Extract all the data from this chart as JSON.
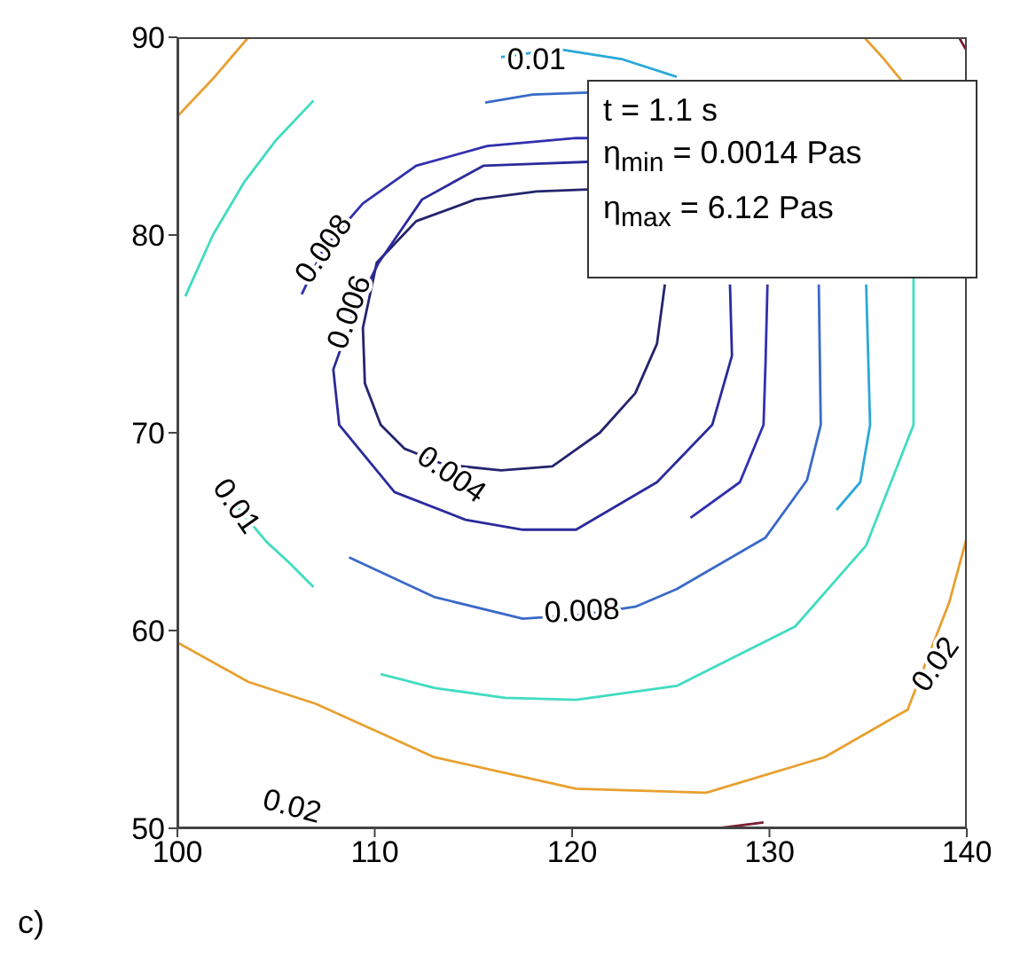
{
  "chart_data": {
    "type": "line",
    "xlim": [
      100,
      140
    ],
    "xticks": [
      100,
      110,
      120,
      130,
      140
    ],
    "ylim": [
      50,
      90
    ],
    "yticks": [
      50,
      60,
      70,
      80,
      90
    ],
    "series": [
      {
        "color": "#24246e",
        "x": [
          120.8,
          118.2,
          115.1,
          112.1,
          110.1,
          109.4,
          109.5,
          110.3,
          111.5,
          113.5,
          116.4,
          119.0,
          121.4,
          123.2,
          124.3,
          124.7
        ],
        "values": [
          82.3,
          82.2,
          81.8,
          80.7,
          78.6,
          75.3,
          72.5,
          70.4,
          69.2,
          68.4,
          68.1,
          68.3,
          70.0,
          72.0,
          74.5,
          77.5
        ]
      },
      {
        "color": "#2a2a9c",
        "x": [
          120.8,
          118.2,
          115.5,
          112.4,
          110.2,
          108.9,
          107.9,
          108.2,
          111.0,
          114.6,
          117.5,
          120.2,
          124.3,
          127.1,
          128.1,
          128.0
        ],
        "values": [
          83.7,
          83.6,
          83.5,
          81.8,
          78.6,
          76.0,
          73.2,
          70.4,
          67.0,
          65.6,
          65.1,
          65.1,
          67.5,
          70.4,
          73.9,
          77.5
        ]
      },
      {
        "color": "#3030b0",
        "x": [
          106.3,
          107.4,
          109.4,
          112.1,
          115.7,
          120.2,
          120.8
        ],
        "values": [
          77.0,
          79.3,
          81.6,
          83.5,
          84.5,
          84.9,
          84.9
        ]
      },
      {
        "color": "#3030b0",
        "x": [
          129.9,
          129.8,
          129.7,
          128.5,
          126.0
        ],
        "values": [
          77.5,
          73.5,
          70.4,
          67.5,
          65.7
        ]
      },
      {
        "color": "#3a6ac8",
        "x": [
          115.6,
          118.0,
          120.8
        ],
        "values": [
          86.7,
          87.1,
          87.2
        ]
      },
      {
        "color": "#3a6ac8",
        "x": [
          132.5,
          132.6,
          131.9,
          129.8,
          125.3,
          123.2,
          120.5,
          117.5,
          113.0,
          108.7
        ],
        "values": [
          77.5,
          70.4,
          67.6,
          64.7,
          62.1,
          61.2,
          60.8,
          60.6,
          61.7,
          63.7
        ]
      },
      {
        "color": "#2aa8d8",
        "x": [
          116.4,
          119.3,
          122.5,
          125.3
        ],
        "values": [
          89.0,
          89.4,
          88.9,
          88.0
        ]
      },
      {
        "color": "#2aa8d8",
        "x": [
          134.9,
          135.1,
          134.6,
          133.4
        ],
        "values": [
          77.5,
          70.4,
          67.5,
          66.1
        ]
      },
      {
        "color": "#40dcc0",
        "x": [
          106.9,
          105.0,
          103.4,
          101.8,
          100.4
        ],
        "values": [
          86.8,
          84.8,
          82.7,
          80.0,
          76.9
        ]
      },
      {
        "color": "#40dcc0",
        "x": [
          103.0,
          104.5,
          105.7,
          106.9
        ],
        "values": [
          66.3,
          64.5,
          63.4,
          62.2
        ]
      },
      {
        "color": "#40dcc0",
        "x": [
          110.3,
          113.0,
          116.6,
          120.2,
          125.3,
          131.3,
          134.9,
          137.3,
          137.3
        ],
        "values": [
          57.8,
          57.1,
          56.6,
          56.5,
          57.2,
          60.2,
          64.3,
          70.4,
          77.8
        ]
      },
      {
        "color": "#e8a030",
        "x": [
          100,
          101.8,
          103.6
        ],
        "values": [
          86.0,
          87.9,
          90
        ]
      },
      {
        "color": "#e8a030",
        "x": [
          134.8,
          135.8,
          136.7
        ],
        "values": [
          90,
          88.9,
          87.8
        ]
      },
      {
        "color": "#e8a030",
        "x": [
          140,
          139.1,
          137.0,
          132.8,
          126.8,
          120.2,
          113.0,
          107.0,
          103.6,
          100
        ],
        "values": [
          64.7,
          61.4,
          56.0,
          53.6,
          51.8,
          52.0,
          53.6,
          56.3,
          57.4,
          59.4
        ]
      },
      {
        "color": "#7a2030",
        "x": [
          127.4,
          129.7
        ],
        "values": [
          50.0,
          50.3
        ]
      },
      {
        "color": "#7a2030",
        "x": [
          139.6,
          140
        ],
        "values": [
          90,
          89.3
        ]
      }
    ],
    "annotations": [
      "t = 1.1 s",
      "η$_{min}$ = 0.0014 Pas",
      "η$_{max}$ = 6.12 Pas",
      {
        "text": "0.01",
        "x": 118.2,
        "y": 88.9
      },
      {
        "text": "0.008",
        "x": 107.4,
        "y": 79.3
      },
      {
        "text": "0.006",
        "x": 108.7,
        "y": 76.1
      },
      {
        "text": "0.004",
        "x": 113.9,
        "y": 67.9
      },
      {
        "text": "0.008",
        "x": 120.5,
        "y": 61.0
      },
      {
        "text": "0.01",
        "x": 103.0,
        "y": 66.3
      },
      "0.02",
      {
        "text": "0.02",
        "x": 138.4,
        "y": 58.3
      },
      "c)"
    ]
  }
}
